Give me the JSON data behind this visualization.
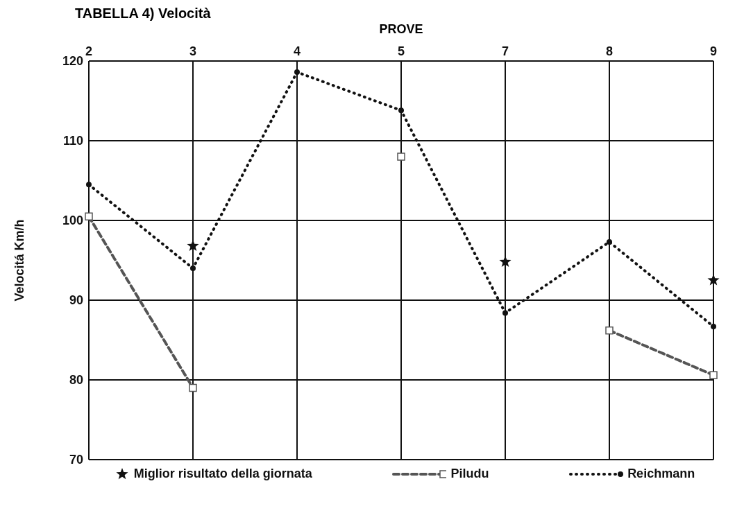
{
  "chart_data": {
    "type": "line",
    "title": "TABELLA 4) Velocità",
    "xlabel": "PROVE",
    "ylabel": "Velocitá  Km/h",
    "categories": [
      "2",
      "3",
      "4",
      "5",
      "7",
      "8",
      "9"
    ],
    "series": [
      {
        "name": "Reichmann",
        "color": "#111111",
        "marker": "circle",
        "line_style": "dotted",
        "values": [
          104.5,
          94,
          118.6,
          113.8,
          88.4,
          97.3,
          86.7
        ]
      },
      {
        "name": "Piludu",
        "color": "#555555",
        "marker": "square",
        "line_style": "dashed",
        "values": [
          100.5,
          79,
          null,
          108,
          null,
          86.2,
          80.6
        ]
      },
      {
        "name": "Miglior risultato della giornata",
        "type": "scatter",
        "color": "#111111",
        "marker": "star",
        "values": [
          null,
          96.8,
          null,
          null,
          94.8,
          null,
          92.5
        ]
      }
    ],
    "ylim": [
      70,
      120
    ],
    "yticks": [
      70,
      80,
      90,
      100,
      110,
      120
    ],
    "grid": true,
    "legend": "bottom"
  }
}
